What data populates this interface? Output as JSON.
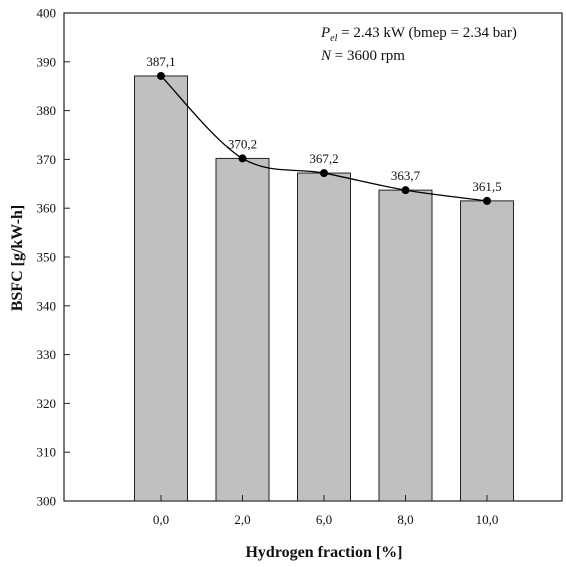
{
  "chart_data": {
    "type": "bar",
    "categories": [
      "0,0",
      "2,0",
      "6,0",
      "8,0",
      "10,0"
    ],
    "values": [
      387.1,
      370.2,
      367.2,
      363.7,
      361.5
    ],
    "data_labels": [
      "387,1",
      "370,2",
      "367,2",
      "363,7",
      "361,5"
    ],
    "xlabel": "Hydrogen fraction [%]",
    "ylabel": "BSFC [g/kW-h]",
    "ylim": [
      300,
      400
    ],
    "yticks": [
      300,
      310,
      320,
      330,
      340,
      350,
      360,
      370,
      380,
      390,
      400
    ],
    "grid": false,
    "overlay_line": true,
    "annotations": {
      "line1_prefix": "P",
      "line1_sub": "el",
      "line1_rest": " = 2.43 kW (bmep = 2.34 bar)",
      "line2_var": "N",
      "line2_rest": " = 3600 rpm"
    },
    "colors": {
      "bar_fill": "#c0c0c0",
      "bar_stroke": "#222222",
      "line": "#000000",
      "marker": "#000000"
    }
  }
}
